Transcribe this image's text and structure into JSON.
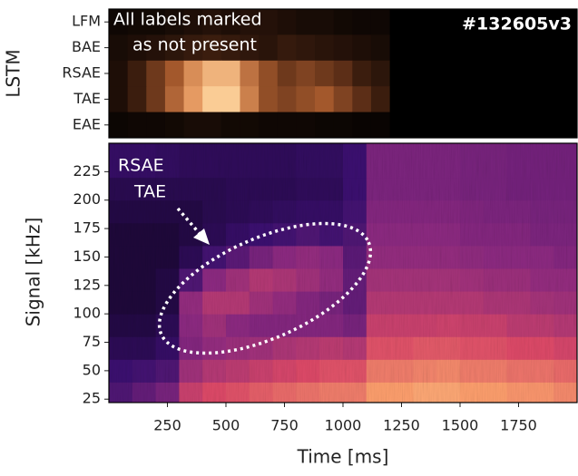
{
  "chart_data": [
    {
      "type": "heatmap",
      "ylabel": "LSTM",
      "categories": [
        "LFM",
        "BAE",
        "RSAE",
        "TAE",
        "EAE"
      ],
      "xlim": [
        0,
        2000
      ],
      "colormap": [
        "#000000",
        "#4a2412",
        "#a3582c",
        "#e59a62",
        "#ffd8a2"
      ],
      "values": [
        [
          0.05,
          0.06,
          0.06,
          0.08,
          0.1,
          0.12,
          0.1,
          0.12,
          0.12,
          0.1,
          0.08,
          0.08,
          0.06,
          0.05,
          0.05,
          0,
          0,
          0,
          0,
          0,
          0,
          0,
          0,
          0,
          0
        ],
        [
          0.08,
          0.1,
          0.12,
          0.15,
          0.18,
          0.2,
          0.18,
          0.16,
          0.14,
          0.18,
          0.16,
          0.14,
          0.12,
          0.1,
          0.08,
          0,
          0,
          0,
          0,
          0,
          0,
          0,
          0,
          0,
          0
        ],
        [
          0.1,
          0.2,
          0.35,
          0.5,
          0.7,
          0.85,
          0.85,
          0.6,
          0.45,
          0.35,
          0.4,
          0.35,
          0.3,
          0.2,
          0.15,
          0,
          0,
          0,
          0,
          0,
          0,
          0,
          0,
          0,
          0
        ],
        [
          0.1,
          0.2,
          0.35,
          0.55,
          0.75,
          0.95,
          0.95,
          0.65,
          0.45,
          0.4,
          0.45,
          0.5,
          0.4,
          0.3,
          0.2,
          0,
          0,
          0,
          0,
          0,
          0,
          0,
          0,
          0,
          0
        ],
        [
          0.04,
          0.05,
          0.05,
          0.06,
          0.08,
          0.08,
          0.06,
          0.06,
          0.05,
          0.05,
          0.05,
          0.04,
          0.04,
          0.03,
          0.03,
          0,
          0,
          0,
          0,
          0,
          0,
          0,
          0,
          0,
          0
        ]
      ],
      "annotations": [
        "All labels marked",
        "as not present",
        "#132605v3"
      ]
    },
    {
      "type": "spectrogram",
      "xlabel": "Time [ms]",
      "ylabel": "Signal [kHz]",
      "xlim": [
        0,
        2000
      ],
      "ylim": [
        22,
        250
      ],
      "xticks": [
        250,
        500,
        750,
        1000,
        1250,
        1500,
        1750
      ],
      "yticks": [
        25,
        50,
        75,
        100,
        125,
        150,
        175,
        200,
        225
      ],
      "x_edges": [
        0,
        100,
        200,
        300,
        400,
        500,
        600,
        700,
        800,
        900,
        1000,
        1100,
        1200,
        1300,
        1400,
        1500,
        1600,
        1700,
        1800,
        1900,
        2000
      ],
      "y_edges": [
        22,
        40,
        60,
        80,
        100,
        120,
        140,
        160,
        180,
        200,
        220,
        250
      ],
      "colormap": [
        "#000004",
        "#3b0f70",
        "#8c2981",
        "#de4968",
        "#fe9f6d",
        "#fcfdbf"
      ],
      "values": [
        [
          0.25,
          0.3,
          0.35,
          0.55,
          0.6,
          0.62,
          0.65,
          0.68,
          0.7,
          0.72,
          0.72,
          0.8,
          0.8,
          0.82,
          0.82,
          0.8,
          0.8,
          0.78,
          0.78,
          0.75
        ],
        [
          0.2,
          0.22,
          0.25,
          0.45,
          0.5,
          0.52,
          0.55,
          0.58,
          0.6,
          0.62,
          0.62,
          0.72,
          0.72,
          0.74,
          0.75,
          0.72,
          0.72,
          0.7,
          0.7,
          0.68
        ],
        [
          0.15,
          0.15,
          0.18,
          0.38,
          0.42,
          0.44,
          0.45,
          0.48,
          0.5,
          0.52,
          0.5,
          0.62,
          0.62,
          0.64,
          0.64,
          0.62,
          0.62,
          0.6,
          0.6,
          0.58
        ],
        [
          0.12,
          0.12,
          0.15,
          0.4,
          0.45,
          0.4,
          0.38,
          0.38,
          0.38,
          0.38,
          0.35,
          0.55,
          0.55,
          0.55,
          0.56,
          0.55,
          0.55,
          0.52,
          0.52,
          0.5
        ],
        [
          0.1,
          0.1,
          0.12,
          0.42,
          0.5,
          0.5,
          0.45,
          0.42,
          0.38,
          0.35,
          0.3,
          0.5,
          0.5,
          0.5,
          0.5,
          0.5,
          0.48,
          0.48,
          0.46,
          0.45
        ],
        [
          0.1,
          0.1,
          0.12,
          0.25,
          0.4,
          0.45,
          0.5,
          0.48,
          0.45,
          0.42,
          0.3,
          0.46,
          0.46,
          0.46,
          0.46,
          0.45,
          0.44,
          0.44,
          0.42,
          0.42
        ],
        [
          0.1,
          0.1,
          0.1,
          0.15,
          0.22,
          0.28,
          0.35,
          0.4,
          0.42,
          0.4,
          0.28,
          0.42,
          0.42,
          0.42,
          0.42,
          0.41,
          0.4,
          0.4,
          0.4,
          0.38
        ],
        [
          0.1,
          0.1,
          0.1,
          0.12,
          0.15,
          0.18,
          0.2,
          0.22,
          0.25,
          0.22,
          0.25,
          0.4,
          0.4,
          0.4,
          0.4,
          0.38,
          0.38,
          0.38,
          0.36,
          0.36
        ],
        [
          0.12,
          0.12,
          0.12,
          0.12,
          0.14,
          0.15,
          0.16,
          0.17,
          0.18,
          0.18,
          0.22,
          0.38,
          0.38,
          0.38,
          0.38,
          0.37,
          0.36,
          0.36,
          0.35,
          0.35
        ],
        [
          0.14,
          0.14,
          0.14,
          0.14,
          0.14,
          0.15,
          0.15,
          0.15,
          0.16,
          0.16,
          0.2,
          0.36,
          0.36,
          0.36,
          0.36,
          0.35,
          0.35,
          0.34,
          0.34,
          0.34
        ],
        [
          0.18,
          0.18,
          0.17,
          0.16,
          0.16,
          0.16,
          0.16,
          0.16,
          0.17,
          0.17,
          0.2,
          0.36,
          0.36,
          0.36,
          0.36,
          0.35,
          0.35,
          0.34,
          0.34,
          0.34
        ]
      ],
      "annotations": [
        "RSAE",
        "TAE"
      ]
    }
  ]
}
